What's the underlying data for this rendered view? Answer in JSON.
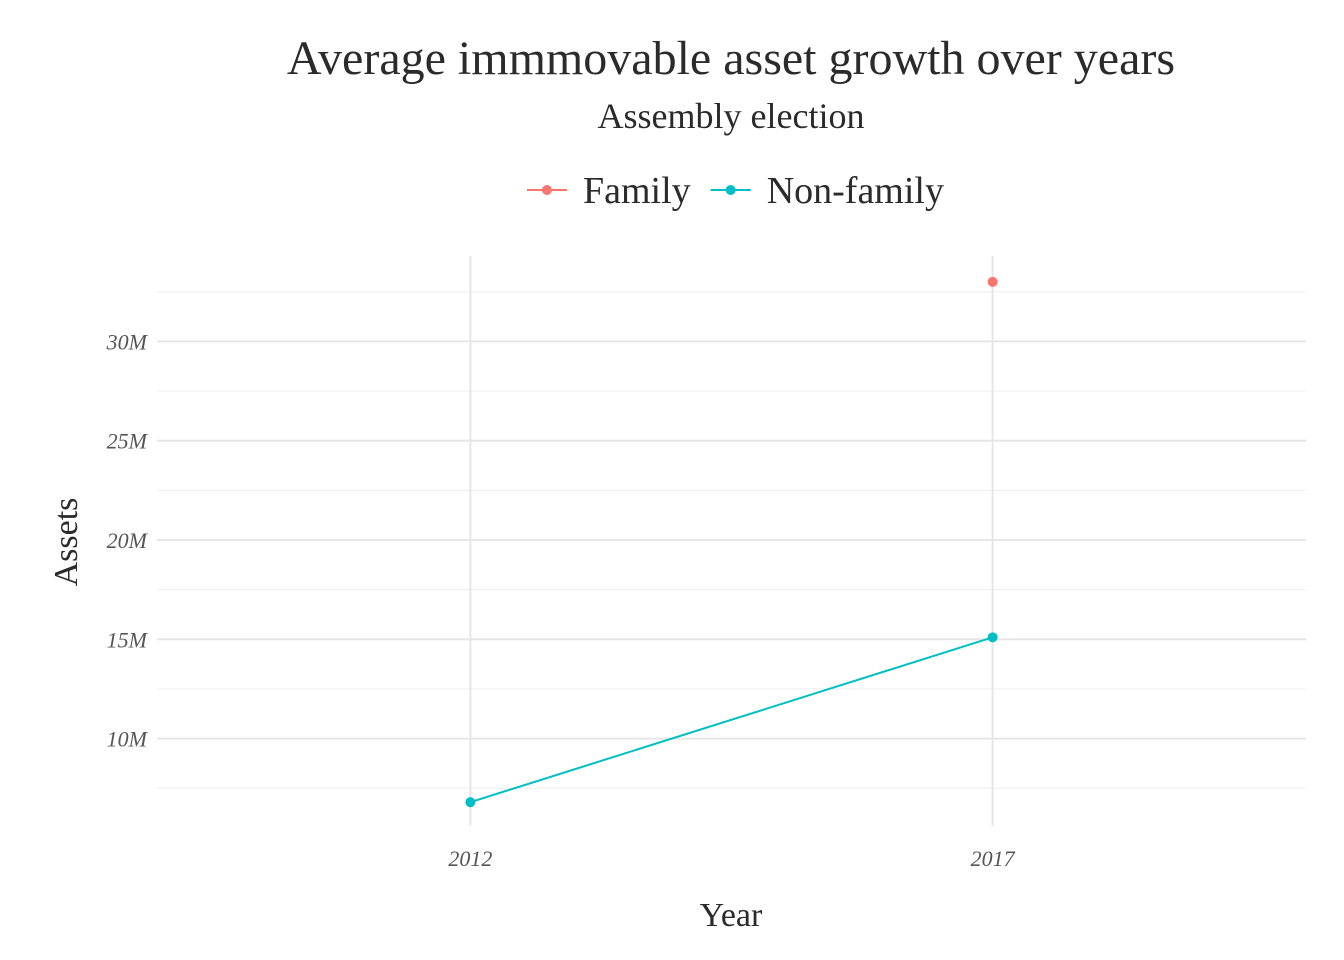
{
  "chart_data": {
    "type": "line",
    "title": "Average immmovable asset growth over years",
    "subtitle": "Assembly election",
    "xlabel": "Year",
    "ylabel": "Assets",
    "x_ticks": [
      2012,
      2017
    ],
    "y_ticks": [
      10000000,
      15000000,
      20000000,
      25000000,
      30000000
    ],
    "y_tick_labels": [
      "10M",
      "15M",
      "20M",
      "25M",
      "30M"
    ],
    "xlim": [
      2009,
      2020
    ],
    "ylim": [
      5600000,
      34300000
    ],
    "grid": true,
    "legend_position": "top",
    "series": [
      {
        "name": "Family",
        "color": "#F8766D",
        "x": [
          2017
        ],
        "values": [
          33000000
        ]
      },
      {
        "name": "Non-family",
        "color": "#00BFC4",
        "x": [
          2012,
          2017
        ],
        "values": [
          6800000,
          15100000
        ]
      }
    ]
  }
}
